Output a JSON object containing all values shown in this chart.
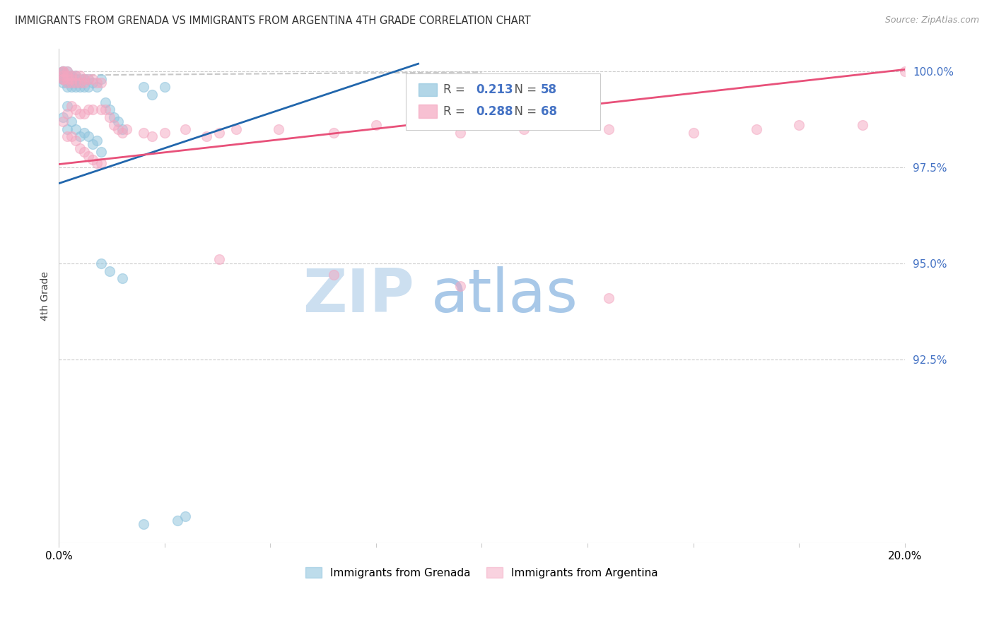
{
  "title": "IMMIGRANTS FROM GRENADA VS IMMIGRANTS FROM ARGENTINA 4TH GRADE CORRELATION CHART",
  "source": "Source: ZipAtlas.com",
  "ylabel": "4th Grade",
  "xlim": [
    0.0,
    0.2
  ],
  "ylim": [
    0.877,
    1.006
  ],
  "ytick_positions": [
    0.925,
    0.95,
    0.975,
    1.0
  ],
  "ytick_labels": [
    "92.5%",
    "95.0%",
    "97.5%",
    "100.0%"
  ],
  "xtick_positions": [
    0.0,
    0.025,
    0.05,
    0.075,
    0.1,
    0.125,
    0.15,
    0.175,
    0.2
  ],
  "xtick_labels": [
    "0.0%",
    "",
    "",
    "",
    "",
    "",
    "",
    "",
    "20.0%"
  ],
  "R_grenada": 0.213,
  "N_grenada": 58,
  "R_argentina": 0.288,
  "N_argentina": 68,
  "grenada_color": "#92c5de",
  "argentina_color": "#f4a6c0",
  "grenada_line_color": "#2166ac",
  "argentina_line_color": "#e8517a",
  "dashed_line_color": "#bbbbbb",
  "background_color": "#ffffff",
  "watermark_text": "ZIPatlas",
  "watermark_color": "#daeaf5",
  "grenada_line_x0": 0.0,
  "grenada_line_y0": 0.9708,
  "grenada_line_x1": 0.085,
  "grenada_line_y1": 1.002,
  "argentina_line_x0": 0.0,
  "argentina_line_y0": 0.9758,
  "argentina_line_x1": 0.2,
  "argentina_line_y1": 1.0005,
  "dashed_line_x0": 0.0,
  "dashed_line_y0": 0.999,
  "dashed_line_x1": 0.1,
  "dashed_line_y1": 0.9998,
  "grenada_scatter_x": [
    0.001,
    0.001,
    0.001,
    0.001,
    0.001,
    0.001,
    0.001,
    0.001,
    0.001,
    0.002,
    0.002,
    0.002,
    0.002,
    0.002,
    0.002,
    0.002,
    0.002,
    0.003,
    0.003,
    0.003,
    0.003,
    0.003,
    0.003,
    0.004,
    0.004,
    0.004,
    0.004,
    0.004,
    0.005,
    0.005,
    0.005,
    0.005,
    0.006,
    0.006,
    0.006,
    0.007,
    0.007,
    0.007,
    0.008,
    0.008,
    0.009,
    0.009,
    0.01,
    0.01,
    0.011,
    0.012,
    0.013,
    0.014,
    0.015,
    0.02,
    0.022,
    0.025,
    0.01,
    0.012,
    0.015,
    0.02,
    0.028,
    0.03
  ],
  "grenada_scatter_y": [
    1.0,
    1.0,
    1.0,
    0.999,
    0.999,
    0.998,
    0.998,
    0.997,
    0.988,
    1.0,
    0.999,
    0.998,
    0.998,
    0.997,
    0.996,
    0.991,
    0.985,
    0.999,
    0.999,
    0.998,
    0.997,
    0.996,
    0.987,
    0.999,
    0.998,
    0.997,
    0.996,
    0.985,
    0.998,
    0.997,
    0.996,
    0.983,
    0.998,
    0.996,
    0.984,
    0.998,
    0.996,
    0.983,
    0.997,
    0.981,
    0.996,
    0.982,
    0.998,
    0.979,
    0.992,
    0.99,
    0.988,
    0.987,
    0.985,
    0.996,
    0.994,
    0.996,
    0.95,
    0.948,
    0.946,
    0.882,
    0.883,
    0.884
  ],
  "argentina_scatter_x": [
    0.001,
    0.001,
    0.001,
    0.001,
    0.001,
    0.001,
    0.002,
    0.002,
    0.002,
    0.002,
    0.002,
    0.002,
    0.003,
    0.003,
    0.003,
    0.003,
    0.003,
    0.004,
    0.004,
    0.004,
    0.004,
    0.005,
    0.005,
    0.005,
    0.005,
    0.006,
    0.006,
    0.006,
    0.006,
    0.007,
    0.007,
    0.007,
    0.008,
    0.008,
    0.008,
    0.009,
    0.009,
    0.01,
    0.01,
    0.01,
    0.011,
    0.012,
    0.013,
    0.014,
    0.015,
    0.016,
    0.02,
    0.022,
    0.025,
    0.03,
    0.035,
    0.038,
    0.042,
    0.052,
    0.065,
    0.075,
    0.095,
    0.11,
    0.13,
    0.15,
    0.165,
    0.175,
    0.19,
    0.2,
    0.038,
    0.065,
    0.095,
    0.13
  ],
  "argentina_scatter_y": [
    1.0,
    1.0,
    0.999,
    0.998,
    0.998,
    0.987,
    1.0,
    0.999,
    0.998,
    0.997,
    0.989,
    0.983,
    0.999,
    0.998,
    0.997,
    0.991,
    0.983,
    0.999,
    0.997,
    0.99,
    0.982,
    0.999,
    0.997,
    0.989,
    0.98,
    0.998,
    0.997,
    0.989,
    0.979,
    0.998,
    0.99,
    0.978,
    0.998,
    0.99,
    0.977,
    0.997,
    0.976,
    0.997,
    0.99,
    0.976,
    0.99,
    0.988,
    0.986,
    0.985,
    0.984,
    0.985,
    0.984,
    0.983,
    0.984,
    0.985,
    0.983,
    0.984,
    0.985,
    0.985,
    0.984,
    0.986,
    0.984,
    0.985,
    0.985,
    0.984,
    0.985,
    0.986,
    0.986,
    1.0,
    0.951,
    0.947,
    0.944,
    0.941
  ]
}
